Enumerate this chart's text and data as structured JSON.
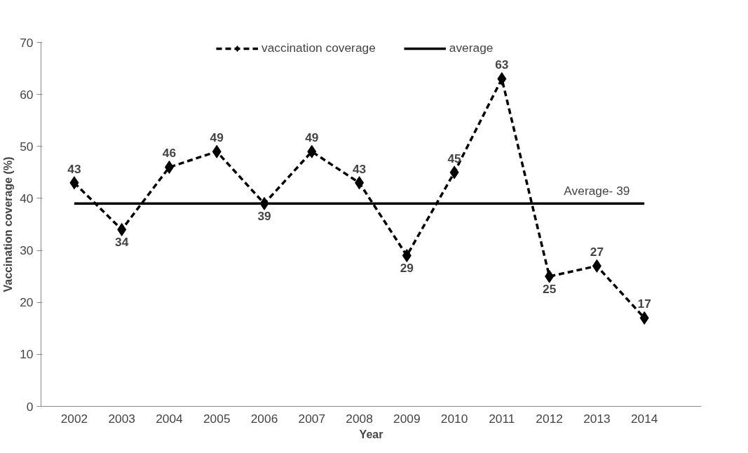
{
  "chart_data": {
    "type": "line",
    "xlabel": "Year",
    "ylabel": "Vaccination coverage (%)",
    "categories": [
      "2002",
      "2003",
      "2004",
      "2005",
      "2006",
      "2007",
      "2008",
      "2009",
      "2010",
      "2011",
      "2012",
      "2013",
      "2014"
    ],
    "series": [
      {
        "name": "vaccination coverage",
        "color": "#000000",
        "marker": "diamond",
        "line_style": "dashed",
        "values": [
          43,
          34,
          46,
          49,
          39,
          49,
          43,
          29,
          45,
          63,
          25,
          27,
          17
        ],
        "data_labels": true
      },
      {
        "name": "average",
        "color": "#000000",
        "marker": "none",
        "line_style": "solid",
        "values": [
          39,
          39,
          39,
          39,
          39,
          39,
          39,
          39,
          39,
          39,
          39,
          39,
          39
        ]
      }
    ],
    "annotations": [
      {
        "text": "Average- 39",
        "x": "2013",
        "y": 39
      }
    ],
    "ylim": [
      0,
      70
    ],
    "yticks": [
      0,
      10,
      20,
      30,
      40,
      50,
      60,
      70
    ],
    "grid": false,
    "legend": "top"
  }
}
